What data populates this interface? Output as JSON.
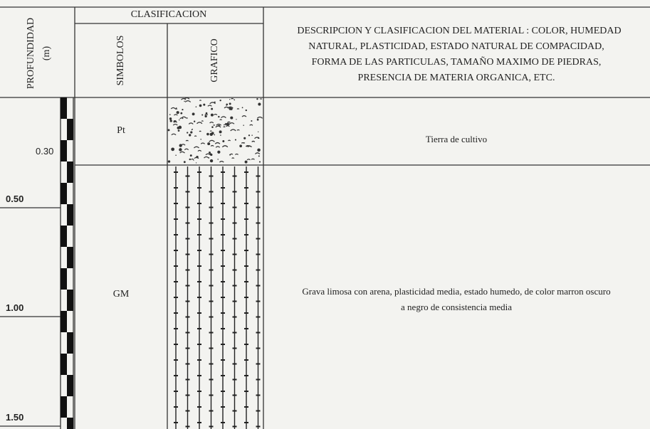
{
  "header": {
    "depth_title": "PROFUNDIDAD",
    "depth_unit": "(m)",
    "classification": "CLASIFICACION",
    "symbols": "SIMBOLOS",
    "graphic": "GRAFICO",
    "description_lines": [
      "DESCRIPCION Y CLASIFICACION DEL MATERIAL : COLOR, HUMEDAD",
      "NATURAL,  PLASTICIDAD, ESTADO NATURAL DE COMPACIDAD,",
      "FORMA DE LAS PARTICULAS, TAMAÑO MAXIMO DE PIEDRAS,",
      "PRESENCIA DE MATERIA ORGANICA, ETC."
    ]
  },
  "layers": [
    {
      "depth_label": "0.30",
      "symbol": "Pt",
      "description_lines": [
        "Tierra de cultivo"
      ]
    },
    {
      "symbol": "GM",
      "description_lines": [
        "Grava limosa con arena, plasticidad media, estado humedo, de color marron oscuro",
        "a negro de consistencia media"
      ]
    }
  ],
  "depth_marks": [
    "0.50",
    "1.00",
    "1.50"
  ]
}
